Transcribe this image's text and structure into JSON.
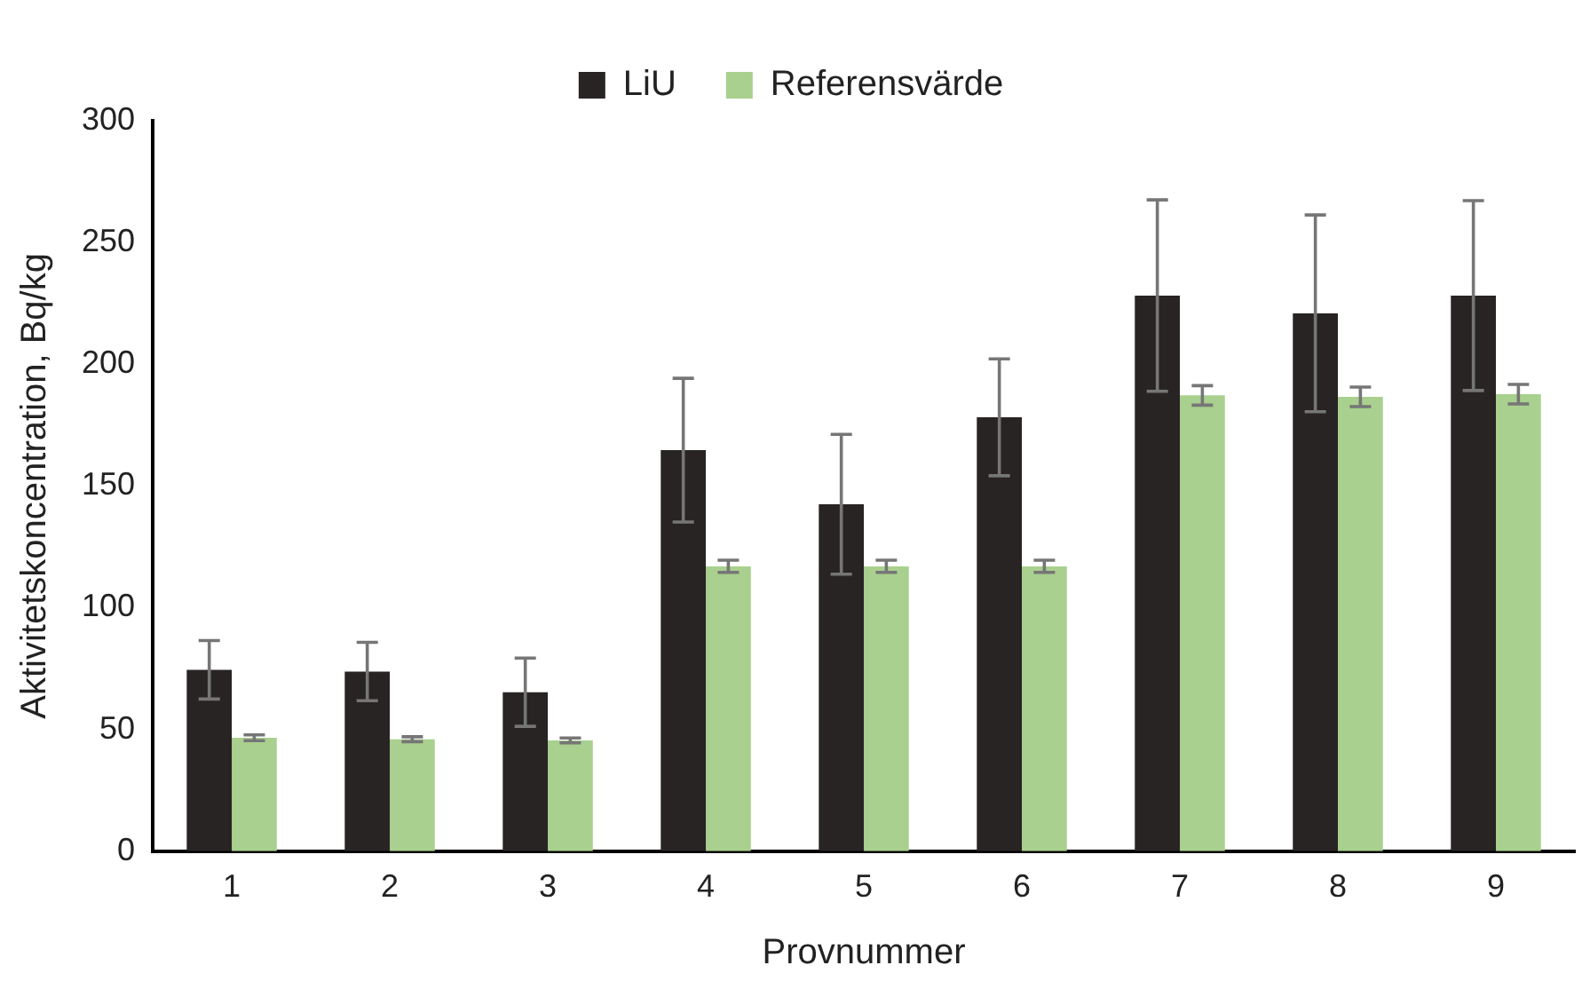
{
  "chart_data": {
    "type": "bar",
    "xlabel": "Provnummer",
    "ylabel": "Aktivitetskoncentration, Bq/kg",
    "categories": [
      "1",
      "2",
      "3",
      "4",
      "5",
      "6",
      "7",
      "8",
      "9"
    ],
    "series": [
      {
        "name": "LiU",
        "color": "#282423",
        "values": [
          74.5,
          73.8,
          65.3,
          164.7,
          142.5,
          178.2,
          228.2,
          220.9,
          228.2
        ],
        "errors": [
          12,
          12,
          14,
          29.5,
          28.7,
          24,
          39.3,
          40.4,
          39
        ]
      },
      {
        "name": "Referensvärde",
        "color": "#a9d08e",
        "values": [
          46.6,
          46,
          45.5,
          117,
          117,
          117,
          187.2,
          186.6,
          187.7
        ],
        "errors": [
          1.2,
          1,
          1,
          2.5,
          2.5,
          2.5,
          4,
          4,
          4
        ]
      }
    ],
    "ylim": [
      0,
      300
    ],
    "yticks": [
      0,
      50,
      100,
      150,
      200,
      250,
      300
    ],
    "grid": false,
    "legend": "top"
  }
}
